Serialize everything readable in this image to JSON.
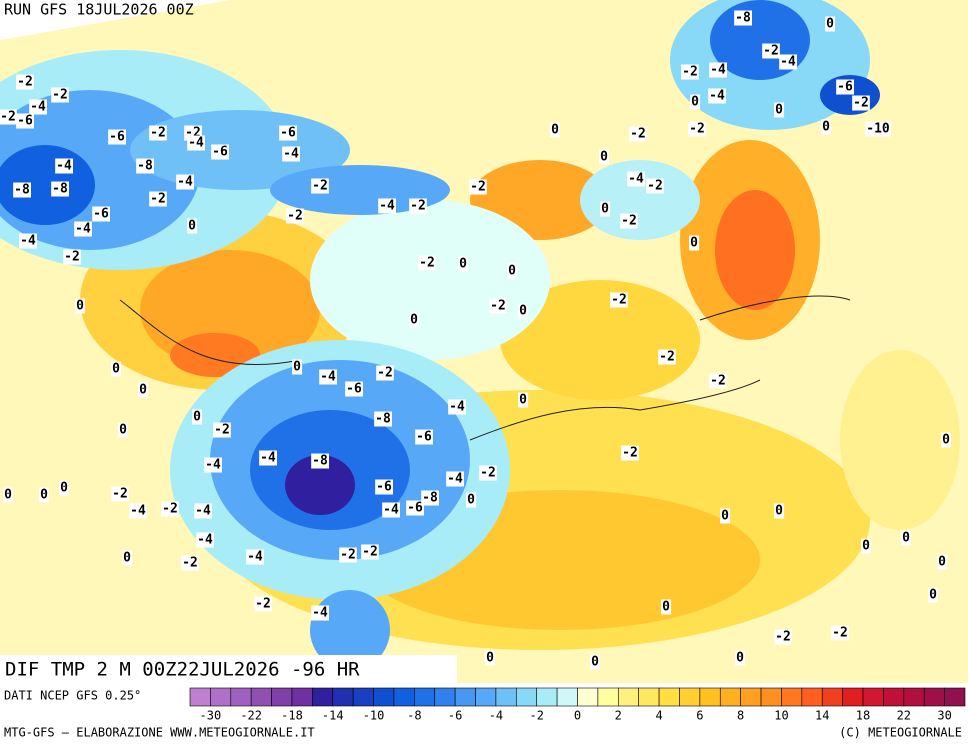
{
  "header": {
    "run": "RUN GFS 18JUL2026 00Z"
  },
  "footer": {
    "field": "DIF TMP 2 M 00Z22JUL2026 -96 HR",
    "source": "DATI NCEP GFS 0.25°",
    "credit": "MTG-GFS – ELABORAZIONE WWW.METEOGIORNALE.IT",
    "copyright": "(C) METEOGIORNALE"
  },
  "colorbar": {
    "colors": [
      "#c080d0",
      "#b070c8",
      "#a060c0",
      "#9050b0",
      "#8040a8",
      "#7030a0",
      "#3020a0",
      "#2030b0",
      "#1840c0",
      "#1050d0",
      "#1060e0",
      "#2070e8",
      "#3080f0",
      "#4898f0",
      "#58a8f8",
      "#70c0f8",
      "#88d8f8",
      "#a8ecf8",
      "#d0f8f8",
      "#ffffd0",
      "#ffffa0",
      "#fff080",
      "#ffe860",
      "#ffe040",
      "#ffd030",
      "#ffc020",
      "#ffb020",
      "#ffa020",
      "#ff9020",
      "#ff7820",
      "#ff6020",
      "#f04020",
      "#e02020",
      "#d01830",
      "#c01038",
      "#b01040",
      "#a01048",
      "#901050"
    ],
    "ticks": [
      -30,
      -22,
      -18,
      -14,
      -10,
      -8,
      -6,
      -4,
      -2,
      0,
      2,
      4,
      6,
      8,
      10,
      14,
      18,
      22,
      30
    ]
  },
  "map_labels": [
    -2,
    -4,
    -2,
    -6,
    -2,
    -6,
    -2,
    -2,
    -4,
    -6,
    -6,
    -4,
    -4,
    -8,
    -4,
    -8,
    -8,
    -6,
    -2,
    -4,
    -4,
    -2,
    0,
    -2,
    -2,
    -4,
    -2,
    -2,
    -2,
    0,
    0,
    -2,
    0,
    0,
    0,
    0,
    -2,
    -2,
    -4,
    -2,
    -2,
    0,
    0,
    -2,
    -2,
    -2,
    -4,
    -6,
    -2,
    -8,
    -6,
    -4,
    0,
    -2,
    -4,
    -4,
    -8,
    -6,
    -4,
    -6,
    -8,
    -4,
    -2,
    0,
    -2,
    -2,
    -4,
    -2,
    -4,
    -4,
    -2,
    -4,
    -2,
    -2,
    -2,
    -4,
    -8,
    0,
    -2,
    -4,
    -2,
    -4,
    -4,
    0,
    -6,
    -2,
    0,
    0,
    -10,
    0,
    0,
    0,
    0,
    0,
    0,
    -2,
    -2,
    0,
    0,
    0,
    0,
    0,
    0,
    0,
    0,
    0,
    0,
    0,
    0,
    0,
    0,
    0
  ]
}
